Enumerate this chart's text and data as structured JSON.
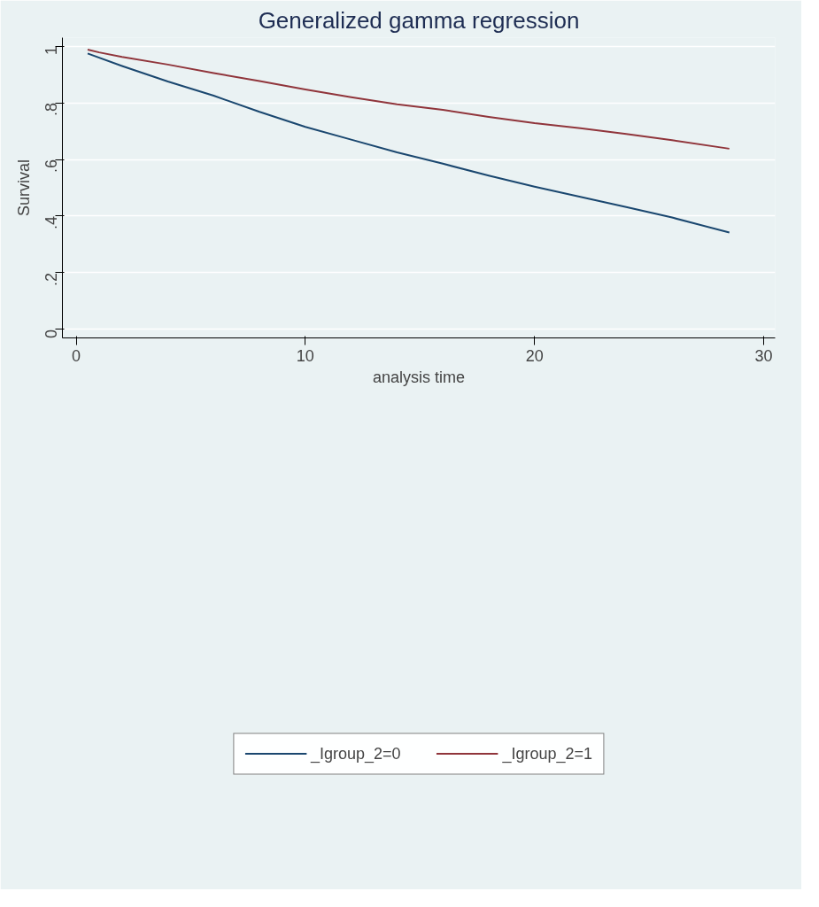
{
  "chart_data": {
    "type": "line",
    "title": "Generalized gamma regression",
    "xlabel": "analysis time",
    "ylabel": "Survival",
    "xlim": [
      -0.6,
      30.5
    ],
    "ylim": [
      -0.03,
      1.03
    ],
    "xticks": [
      0,
      10,
      20,
      30
    ],
    "yticks": [
      {
        "value": 0,
        "label": "0"
      },
      {
        "value": 0.2,
        "label": ".2"
      },
      {
        "value": 0.4,
        "label": ".4"
      },
      {
        "value": 0.6,
        "label": ".6"
      },
      {
        "value": 0.8,
        "label": ".8"
      },
      {
        "value": 1,
        "label": "1"
      }
    ],
    "grid": "y",
    "legend": "bottom",
    "line_style": "solid",
    "marker": "none",
    "series": [
      {
        "name": "_Igroup_2=0",
        "color": "#1a476f",
        "x": [
          0.5,
          2,
          4,
          6,
          8,
          10,
          12,
          14,
          16,
          18,
          20,
          22,
          24,
          26,
          28.5
        ],
        "values": [
          0.974,
          0.93,
          0.875,
          0.825,
          0.768,
          0.715,
          0.67,
          0.625,
          0.585,
          0.543,
          0.504,
          0.468,
          0.432,
          0.395,
          0.342
        ]
      },
      {
        "name": "_Igroup_2=1",
        "color": "#90353b",
        "x": [
          0.5,
          1,
          2,
          4,
          6,
          8,
          10,
          12,
          14,
          16,
          18,
          20,
          22,
          24,
          26,
          28.5
        ],
        "values": [
          0.988,
          0.978,
          0.962,
          0.935,
          0.905,
          0.877,
          0.847,
          0.82,
          0.795,
          0.775,
          0.75,
          0.728,
          0.71,
          0.69,
          0.668,
          0.638
        ]
      }
    ]
  }
}
